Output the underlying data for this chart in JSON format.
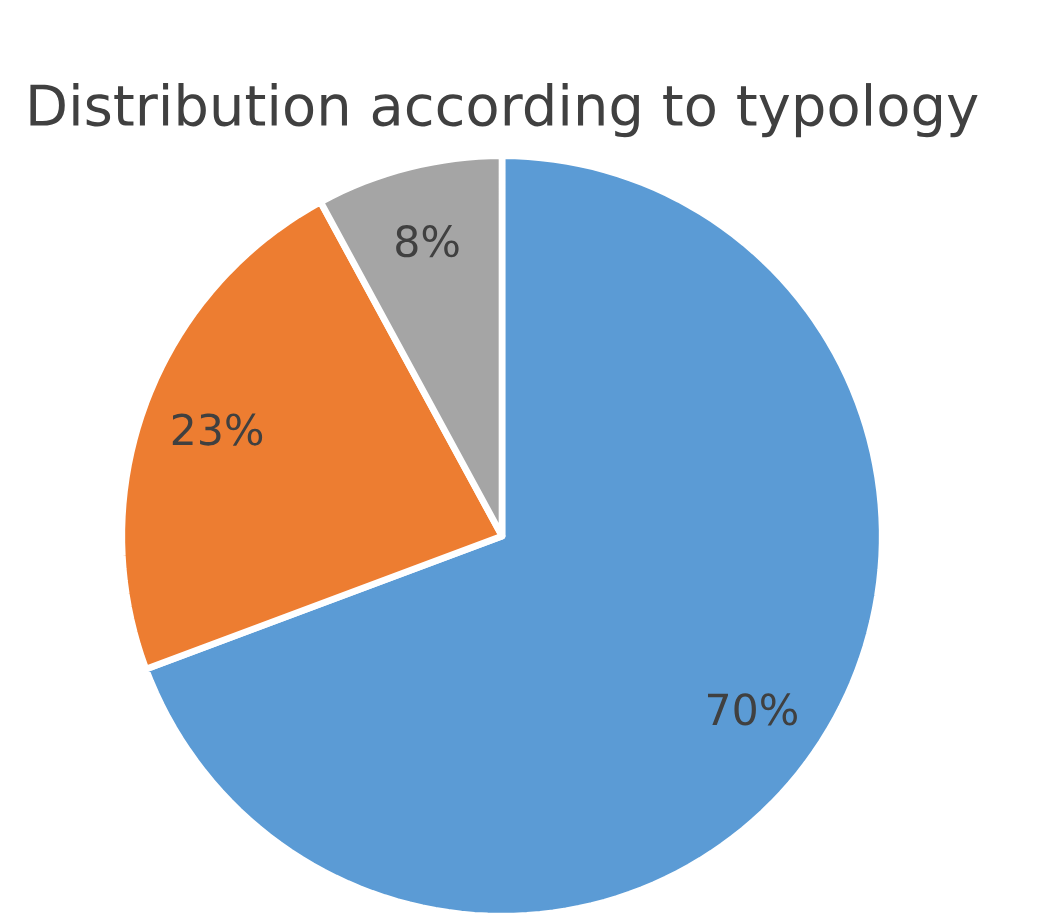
{
  "chart_data": {
    "type": "pie",
    "title": "Distribution according to typology",
    "categories": [
      null,
      null,
      null
    ],
    "values": [
      70,
      23,
      8
    ],
    "colors": [
      "#5b9bd5",
      "#ed7d31",
      "#a5a5a5"
    ],
    "value_labels": [
      "70%",
      "23%",
      "8%"
    ]
  }
}
